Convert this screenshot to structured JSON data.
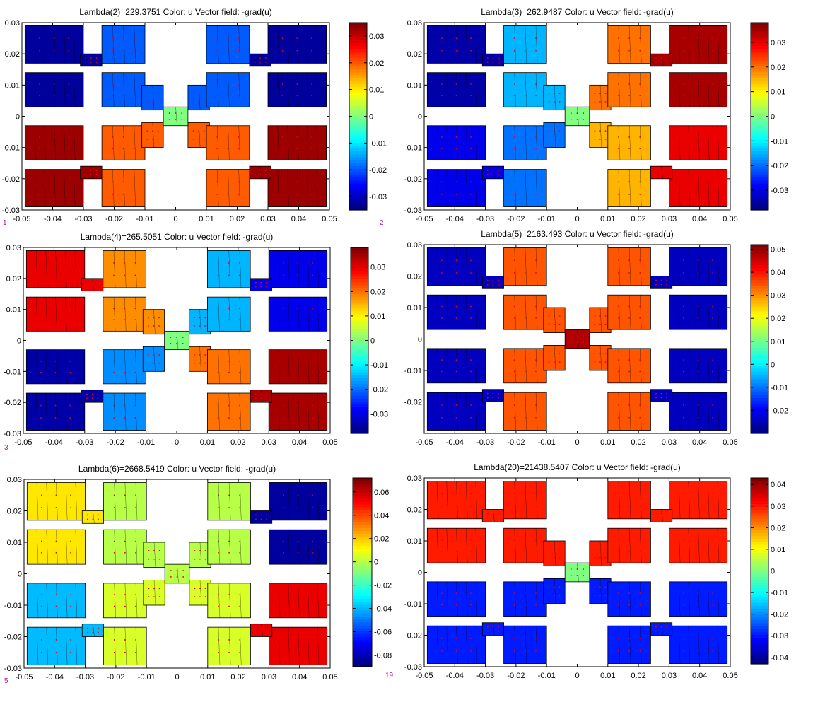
{
  "chart_data": [
    {
      "type": "heatmap",
      "title": "Lambda(2)=229.3751   Color: u  Vector field: -grad(u)",
      "xlim": [
        -0.05,
        0.05
      ],
      "ylim": [
        -0.03,
        0.03
      ],
      "xticks": [
        "-0.05",
        "-0.04",
        "-0.03",
        "-0.02",
        "-0.01",
        "0",
        "0.01",
        "0.02",
        "0.03",
        "0.04",
        "0.05"
      ],
      "yticks": [
        "0.03",
        "0.02",
        "0.01",
        "0",
        "-0.01",
        "-0.02",
        "-0.03"
      ],
      "colorbar": {
        "min": -0.035,
        "max": 0.035,
        "ticks": [
          "0.03",
          "0.02",
          "0.01",
          "0",
          "-0.01",
          "-0.02",
          "-0.03"
        ]
      },
      "fig_label": "1",
      "region_values": {
        "TL": -0.033,
        "TR": -0.033,
        "BL": 0.033,
        "BR": 0.033,
        "ML": -0.02,
        "MR": -0.02,
        "MBL": 0.02,
        "MBR": 0.02,
        "C": 0
      }
    },
    {
      "type": "heatmap",
      "title": "Lambda(3)=262.9487   Color: u  Vector field: -grad(u)",
      "xlim": [
        -0.05,
        0.05
      ],
      "ylim": [
        -0.03,
        0.03
      ],
      "xticks": [
        "-0.05",
        "-0.04",
        "-0.03",
        "-0.02",
        "-0.01",
        "0",
        "0.01",
        "0.02",
        "0.03",
        "0.04",
        "0.05"
      ],
      "yticks": [
        "0.03",
        "0.02",
        "0.01",
        "0",
        "-0.01",
        "-0.02",
        "-0.03"
      ],
      "colorbar": {
        "min": -0.038,
        "max": 0.038,
        "ticks": [
          "0.03",
          "0.02",
          "0.01",
          "0",
          "-0.01",
          "-0.02",
          "-0.03"
        ]
      },
      "fig_label": "2",
      "region_values": {
        "TL": -0.035,
        "TR": 0.035,
        "BL": -0.03,
        "BR": 0.03,
        "ML": -0.015,
        "MR": 0.02,
        "MBL": -0.02,
        "MBR": 0.015,
        "C": 0
      }
    },
    {
      "type": "heatmap",
      "title": "Lambda(4)=265.5051   Color: u  Vector field: -grad(u)",
      "xlim": [
        -0.05,
        0.05
      ],
      "ylim": [
        -0.03,
        0.03
      ],
      "xticks": [
        "-0.05",
        "-0.04",
        "-0.03",
        "-0.02",
        "-0.01",
        "0",
        "0.01",
        "0.02",
        "0.03",
        "0.04",
        "0.05"
      ],
      "yticks": [
        "0.03",
        "0.02",
        "0.01",
        "0",
        "-0.01",
        "-0.02",
        "-0.03"
      ],
      "colorbar": {
        "min": -0.038,
        "max": 0.038,
        "ticks": [
          "0.03",
          "0.02",
          "0.01",
          "0",
          "-0.01",
          "-0.02",
          "-0.03"
        ]
      },
      "fig_label": "3",
      "region_values": {
        "TL": 0.03,
        "TR": -0.03,
        "BL": -0.035,
        "BR": 0.035,
        "ML": 0.018,
        "MR": -0.015,
        "MBL": -0.018,
        "MBR": 0.02,
        "C": 0
      }
    },
    {
      "type": "heatmap",
      "title": "Lambda(5)=2163.493   Color: u  Vector field: -grad(u)",
      "xlim": [
        -0.05,
        0.05
      ],
      "ylim": [
        -0.03,
        0.03
      ],
      "xticks": [
        "-0.05",
        "-0.04",
        "-0.03",
        "-0.02",
        "-0.01",
        "0",
        "0.01",
        "0.02",
        "0.03",
        "0.04",
        "0.05"
      ],
      "yticks": [
        "0.03",
        "0.02",
        "0.01",
        "0",
        "-0.01",
        "-0.02"
      ],
      "colorbar": {
        "min": -0.03,
        "max": 0.052,
        "ticks": [
          "0.05",
          "0.04",
          "0.03",
          "0.02",
          "0.01",
          "0",
          "-0.01",
          "-0.02"
        ]
      },
      "fig_label": "",
      "region_values": {
        "TL": -0.025,
        "TR": -0.025,
        "BL": -0.025,
        "BR": -0.025,
        "ML": 0.035,
        "MR": 0.035,
        "MBL": 0.035,
        "MBR": 0.035,
        "C": 0.048
      }
    },
    {
      "type": "heatmap",
      "title": "Lambda(6)=2668.5419   Color: u  Vector field: -grad(u)",
      "xlim": [
        -0.05,
        0.05
      ],
      "ylim": [
        -0.03,
        0.03
      ],
      "xticks": [
        "-0.05",
        "-0.04",
        "-0.03",
        "-0.02",
        "-0.01",
        "0",
        "0.01",
        "0.02",
        "0.03",
        "0.04",
        "0.05"
      ],
      "yticks": [
        "0.03",
        "0.02",
        "0.01",
        "0",
        "-0.01",
        "-0.02",
        "-0.03"
      ],
      "colorbar": {
        "min": -0.09,
        "max": 0.072,
        "ticks": [
          "0.06",
          "0.04",
          "0.02",
          "0",
          "-0.02",
          "-0.04",
          "-0.06",
          "-0.08"
        ]
      },
      "fig_label": "5",
      "region_values": {
        "TL": 0.015,
        "TR": -0.085,
        "BL": -0.04,
        "BR": 0.055,
        "ML": 0.0,
        "MR": 0.0,
        "MBL": 0.005,
        "MBR": 0.005,
        "C": 0
      }
    },
    {
      "type": "heatmap",
      "title": "Lambda(20)=21438.5407   Color: u  Vector field: -grad(u)",
      "xlim": [
        -0.05,
        0.05
      ],
      "ylim": [
        -0.03,
        0.03
      ],
      "xticks": [
        "-0.05",
        "-0.04",
        "-0.03",
        "-0.02",
        "-0.01",
        "0",
        "0.01",
        "0.02",
        "0.03",
        "0.04",
        "0.05"
      ],
      "yticks": [
        "0.03",
        "0.02",
        "0.01",
        "0",
        "-0.01",
        "-0.02",
        "-0.03"
      ],
      "colorbar": {
        "min": -0.043,
        "max": 0.043,
        "ticks": [
          "0.04",
          "0.03",
          "0.02",
          "0.01",
          "0",
          "-0.01",
          "-0.02",
          "-0.03",
          "-0.04"
        ]
      },
      "fig_label": "19",
      "region_values": {
        "TL": 0.03,
        "TR": 0.03,
        "BL": -0.03,
        "BR": -0.03,
        "ML": 0.03,
        "MR": 0.03,
        "MBL": -0.03,
        "MBR": -0.03,
        "C": 0
      }
    }
  ]
}
